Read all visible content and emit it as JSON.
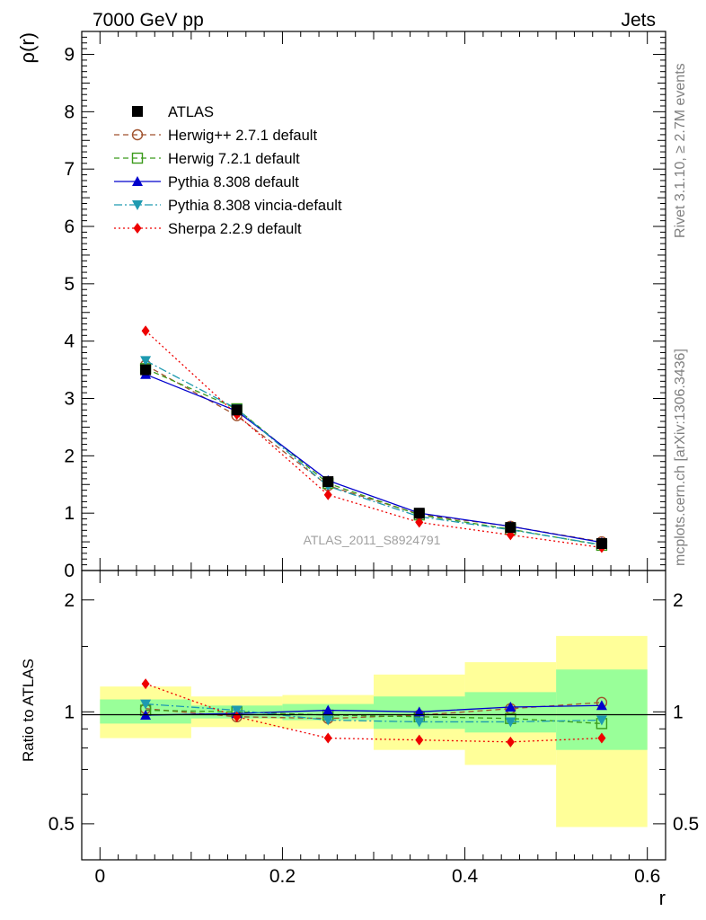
{
  "header": {
    "left": "7000 GeV pp",
    "right": "Jets"
  },
  "side_text": {
    "top": "Rivet 3.1.10, ≥ 2.7M events",
    "bottom": "mcplots.cern.ch [arXiv:1306.3436]"
  },
  "watermark": "ATLAS_2011_S8924791",
  "chart_data": [
    {
      "type": "line",
      "panel": "main",
      "ylabel": "ρ(r)",
      "xlabel": "r",
      "xlim": [
        -0.02,
        0.62
      ],
      "ylim": [
        0,
        9.4
      ],
      "yticks": [
        0,
        1,
        2,
        3,
        4,
        5,
        6,
        7,
        8,
        9
      ],
      "ytick_labels": [
        "0",
        "1",
        "2",
        "3",
        "4",
        "5",
        "6",
        "7",
        "8",
        "9"
      ],
      "x": [
        0.05,
        0.15,
        0.25,
        0.35,
        0.45,
        0.55
      ],
      "series": [
        {
          "name": "ATLAS",
          "marker": "square-filled",
          "color": "#000000",
          "dash": "none",
          "line": false,
          "values": [
            3.5,
            2.8,
            1.55,
            1.0,
            0.75,
            0.47
          ]
        },
        {
          "name": "Herwig++ 2.7.1 default",
          "marker": "circle-open",
          "color": "#a0522d",
          "dash": "6,4",
          "values": [
            3.58,
            2.7,
            1.48,
            0.98,
            0.77,
            0.5
          ]
        },
        {
          "name": "Herwig 7.2.1 default",
          "marker": "square-open",
          "color": "#3a9a1a",
          "dash": "6,4",
          "values": [
            3.52,
            2.82,
            1.52,
            0.97,
            0.72,
            0.44
          ]
        },
        {
          "name": "Pythia 8.308 default",
          "marker": "triangle-up",
          "color": "#0000cc",
          "dash": "none",
          "values": [
            3.42,
            2.78,
            1.57,
            1.0,
            0.77,
            0.49
          ]
        },
        {
          "name": "Pythia 8.308 vincia-default",
          "marker": "triangle-down",
          "color": "#1e9ab0",
          "dash": "9,3,2,3",
          "values": [
            3.66,
            2.82,
            1.47,
            0.94,
            0.71,
            0.45
          ]
        },
        {
          "name": "Sherpa 2.2.9 default",
          "marker": "diamond",
          "color": "#ee0000",
          "dash": "2,3",
          "values": [
            4.18,
            2.72,
            1.32,
            0.84,
            0.62,
            0.4
          ]
        }
      ]
    },
    {
      "type": "line",
      "panel": "ratio",
      "ylabel": "Ratio to ATLAS",
      "xlabel": "r",
      "xlim": [
        -0.02,
        0.62
      ],
      "ylim": [
        0.4,
        2.4
      ],
      "yscale": "log",
      "yticks": [
        0.5,
        1,
        2
      ],
      "ytick_labels": [
        "0.5",
        "1",
        "2"
      ],
      "xticks": [
        0,
        0.2,
        0.4,
        0.6
      ],
      "xtick_labels": [
        "0",
        "0.2",
        "0.4",
        "0.6"
      ],
      "x": [
        0.05,
        0.15,
        0.25,
        0.35,
        0.45,
        0.55
      ],
      "bin_edges": [
        0,
        0.1,
        0.2,
        0.3,
        0.4,
        0.5,
        0.6
      ],
      "band_inner": [
        [
          0.93,
          1.08
        ],
        [
          0.96,
          1.04
        ],
        [
          0.95,
          1.05
        ],
        [
          0.9,
          1.1
        ],
        [
          0.88,
          1.13
        ],
        [
          0.79,
          1.3
        ]
      ],
      "band_outer": [
        [
          0.85,
          1.17
        ],
        [
          0.91,
          1.1
        ],
        [
          0.9,
          1.11
        ],
        [
          0.79,
          1.26
        ],
        [
          0.72,
          1.36
        ],
        [
          0.49,
          1.6
        ]
      ],
      "band_inner_color": "#99ff99",
      "band_outer_color": "#ffff99",
      "series": [
        {
          "name": "Herwig++ 2.7.1 default",
          "marker": "circle-open",
          "color": "#a0522d",
          "dash": "6,4",
          "values": [
            1.02,
            0.97,
            0.96,
            0.98,
            1.02,
            1.06
          ]
        },
        {
          "name": "Herwig 7.2.1 default",
          "marker": "square-open",
          "color": "#3a9a1a",
          "dash": "6,4",
          "values": [
            1.01,
            1.0,
            0.98,
            0.97,
            0.96,
            0.93
          ]
        },
        {
          "name": "Pythia 8.308 default",
          "marker": "triangle-up",
          "color": "#0000cc",
          "dash": "none",
          "values": [
            0.98,
            0.99,
            1.01,
            1.0,
            1.03,
            1.04
          ]
        },
        {
          "name": "Pythia 8.308 vincia-default",
          "marker": "triangle-down",
          "color": "#1e9ab0",
          "dash": "9,3,2,3",
          "values": [
            1.05,
            1.01,
            0.95,
            0.94,
            0.94,
            0.95
          ]
        },
        {
          "name": "Sherpa 2.2.9 default",
          "marker": "diamond",
          "color": "#ee0000",
          "dash": "2,3",
          "values": [
            1.19,
            0.97,
            0.85,
            0.84,
            0.83,
            0.85
          ]
        }
      ]
    }
  ]
}
